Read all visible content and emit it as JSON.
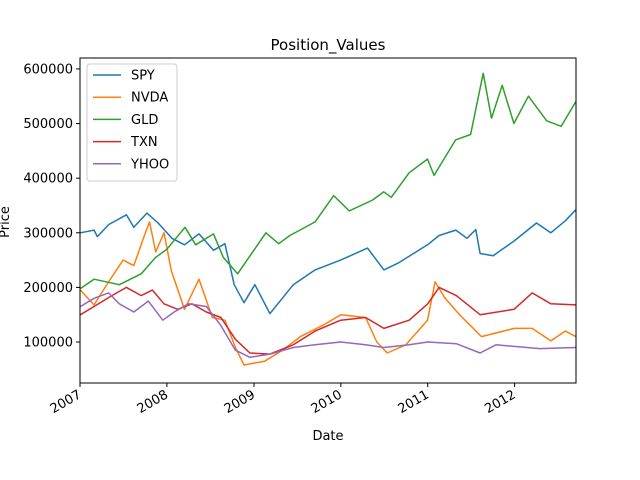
{
  "chart_data": {
    "type": "line",
    "title": "Position_Values",
    "xlabel": "Date",
    "ylabel": "Price",
    "xlim": [
      "2007-01-01",
      "2012-09-15"
    ],
    "ylim": [
      25000,
      620000
    ],
    "x_ticks": [
      "2007",
      "2008",
      "2009",
      "2010",
      "2011",
      "2012"
    ],
    "y_ticks": [
      "100000",
      "200000",
      "300000",
      "400000",
      "500000",
      "600000"
    ],
    "grid": false,
    "legend_position": "upper-left",
    "series": [
      {
        "name": "SPY",
        "color": "#1f77b4",
        "points": [
          [
            "2007-01-03",
            300000
          ],
          [
            "2007-03-01",
            305000
          ],
          [
            "2007-03-15",
            293000
          ],
          [
            "2007-05-01",
            315000
          ],
          [
            "2007-07-15",
            333000
          ],
          [
            "2007-08-15",
            310000
          ],
          [
            "2007-10-09",
            336000
          ],
          [
            "2007-11-25",
            318000
          ],
          [
            "2008-01-22",
            290000
          ],
          [
            "2008-03-15",
            278000
          ],
          [
            "2008-05-15",
            298000
          ],
          [
            "2008-07-15",
            268000
          ],
          [
            "2008-09-01",
            280000
          ],
          [
            "2008-10-10",
            205000
          ],
          [
            "2008-11-20",
            172000
          ],
          [
            "2009-01-05",
            205000
          ],
          [
            "2009-03-09",
            152000
          ],
          [
            "2009-06-15",
            205000
          ],
          [
            "2009-09-15",
            232000
          ],
          [
            "2009-12-31",
            250000
          ],
          [
            "2010-04-23",
            272000
          ],
          [
            "2010-07-01",
            232000
          ],
          [
            "2010-09-01",
            245000
          ],
          [
            "2010-12-31",
            278000
          ],
          [
            "2011-02-18",
            295000
          ],
          [
            "2011-04-29",
            305000
          ],
          [
            "2011-06-15",
            290000
          ],
          [
            "2011-07-22",
            306000
          ],
          [
            "2011-08-09",
            262000
          ],
          [
            "2011-10-03",
            258000
          ],
          [
            "2011-12-30",
            285000
          ],
          [
            "2012-04-02",
            318000
          ],
          [
            "2012-06-01",
            300000
          ],
          [
            "2012-08-01",
            322000
          ],
          [
            "2012-09-14",
            342000
          ]
        ]
      },
      {
        "name": "NVDA",
        "color": "#ff7f0e",
        "points": [
          [
            "2007-01-03",
            195000
          ],
          [
            "2007-03-01",
            168000
          ],
          [
            "2007-05-01",
            210000
          ],
          [
            "2007-07-01",
            250000
          ],
          [
            "2007-08-15",
            240000
          ],
          [
            "2007-10-01",
            298000
          ],
          [
            "2007-10-20",
            320000
          ],
          [
            "2007-11-15",
            265000
          ],
          [
            "2007-12-20",
            300000
          ],
          [
            "2008-01-20",
            230000
          ],
          [
            "2008-03-15",
            160000
          ],
          [
            "2008-05-15",
            215000
          ],
          [
            "2008-07-10",
            145000
          ],
          [
            "2008-09-01",
            140000
          ],
          [
            "2008-10-15",
            90000
          ],
          [
            "2008-11-20",
            58000
          ],
          [
            "2009-02-15",
            65000
          ],
          [
            "2009-05-01",
            85000
          ],
          [
            "2009-07-15",
            110000
          ],
          [
            "2009-10-15",
            130000
          ],
          [
            "2010-01-01",
            150000
          ],
          [
            "2010-04-15",
            145000
          ],
          [
            "2010-06-01",
            100000
          ],
          [
            "2010-07-15",
            80000
          ],
          [
            "2010-10-01",
            95000
          ],
          [
            "2010-12-31",
            140000
          ],
          [
            "2011-02-01",
            210000
          ],
          [
            "2011-03-15",
            180000
          ],
          [
            "2011-05-15",
            150000
          ],
          [
            "2011-08-15",
            110000
          ],
          [
            "2011-12-30",
            125000
          ],
          [
            "2012-03-15",
            125000
          ],
          [
            "2012-06-01",
            102000
          ],
          [
            "2012-08-01",
            120000
          ],
          [
            "2012-09-14",
            110000
          ]
        ]
      },
      {
        "name": "GLD",
        "color": "#2ca02c",
        "points": [
          [
            "2007-01-03",
            198000
          ],
          [
            "2007-03-01",
            215000
          ],
          [
            "2007-06-15",
            205000
          ],
          [
            "2007-09-15",
            225000
          ],
          [
            "2007-11-15",
            255000
          ],
          [
            "2008-01-01",
            270000
          ],
          [
            "2008-03-17",
            310000
          ],
          [
            "2008-05-01",
            278000
          ],
          [
            "2008-07-15",
            298000
          ],
          [
            "2008-08-25",
            255000
          ],
          [
            "2008-10-24",
            225000
          ],
          [
            "2009-02-20",
            300000
          ],
          [
            "2009-04-15",
            280000
          ],
          [
            "2009-06-01",
            295000
          ],
          [
            "2009-09-15",
            320000
          ],
          [
            "2009-12-02",
            368000
          ],
          [
            "2010-02-05",
            340000
          ],
          [
            "2010-05-15",
            360000
          ],
          [
            "2010-06-30",
            375000
          ],
          [
            "2010-08-01",
            365000
          ],
          [
            "2010-10-15",
            410000
          ],
          [
            "2010-12-31",
            435000
          ],
          [
            "2011-01-28",
            405000
          ],
          [
            "2011-04-28",
            470000
          ],
          [
            "2011-06-30",
            480000
          ],
          [
            "2011-08-22",
            592000
          ],
          [
            "2011-09-26",
            510000
          ],
          [
            "2011-11-10",
            570000
          ],
          [
            "2011-12-29",
            500000
          ],
          [
            "2012-02-28",
            550000
          ],
          [
            "2012-05-15",
            505000
          ],
          [
            "2012-07-15",
            495000
          ],
          [
            "2012-09-14",
            540000
          ]
        ]
      },
      {
        "name": "TXN",
        "color": "#d62728",
        "points": [
          [
            "2007-01-03",
            150000
          ],
          [
            "2007-03-01",
            165000
          ],
          [
            "2007-05-15",
            185000
          ],
          [
            "2007-07-15",
            200000
          ],
          [
            "2007-09-15",
            185000
          ],
          [
            "2007-11-01",
            195000
          ],
          [
            "2007-12-20",
            170000
          ],
          [
            "2008-02-15",
            160000
          ],
          [
            "2008-04-15",
            170000
          ],
          [
            "2008-06-15",
            155000
          ],
          [
            "2008-08-15",
            145000
          ],
          [
            "2008-10-15",
            105000
          ],
          [
            "2008-12-15",
            80000
          ],
          [
            "2009-03-09",
            78000
          ],
          [
            "2009-06-15",
            95000
          ],
          [
            "2009-09-15",
            120000
          ],
          [
            "2009-12-31",
            140000
          ],
          [
            "2010-04-15",
            145000
          ],
          [
            "2010-07-01",
            125000
          ],
          [
            "2010-10-15",
            140000
          ],
          [
            "2011-01-01",
            170000
          ],
          [
            "2011-02-18",
            200000
          ],
          [
            "2011-05-01",
            185000
          ],
          [
            "2011-08-09",
            150000
          ],
          [
            "2011-12-30",
            160000
          ],
          [
            "2012-03-15",
            190000
          ],
          [
            "2012-06-01",
            170000
          ],
          [
            "2012-09-14",
            168000
          ]
        ]
      },
      {
        "name": "YHOO",
        "color": "#9467bd",
        "points": [
          [
            "2007-01-03",
            165000
          ],
          [
            "2007-03-01",
            180000
          ],
          [
            "2007-05-01",
            190000
          ],
          [
            "2007-06-15",
            170000
          ],
          [
            "2007-08-15",
            155000
          ],
          [
            "2007-10-15",
            175000
          ],
          [
            "2007-12-15",
            140000
          ],
          [
            "2008-02-01",
            155000
          ],
          [
            "2008-04-01",
            170000
          ],
          [
            "2008-06-15",
            165000
          ],
          [
            "2008-08-15",
            130000
          ],
          [
            "2008-10-15",
            85000
          ],
          [
            "2008-12-15",
            72000
          ],
          [
            "2009-03-09",
            78000
          ],
          [
            "2009-06-15",
            90000
          ],
          [
            "2009-09-15",
            95000
          ],
          [
            "2009-12-31",
            100000
          ],
          [
            "2010-04-15",
            95000
          ],
          [
            "2010-07-01",
            90000
          ],
          [
            "2010-10-15",
            95000
          ],
          [
            "2011-01-01",
            100000
          ],
          [
            "2011-05-01",
            97000
          ],
          [
            "2011-08-09",
            80000
          ],
          [
            "2011-10-15",
            95000
          ],
          [
            "2011-12-30",
            92000
          ],
          [
            "2012-04-15",
            88000
          ],
          [
            "2012-09-14",
            90000
          ]
        ]
      }
    ]
  }
}
